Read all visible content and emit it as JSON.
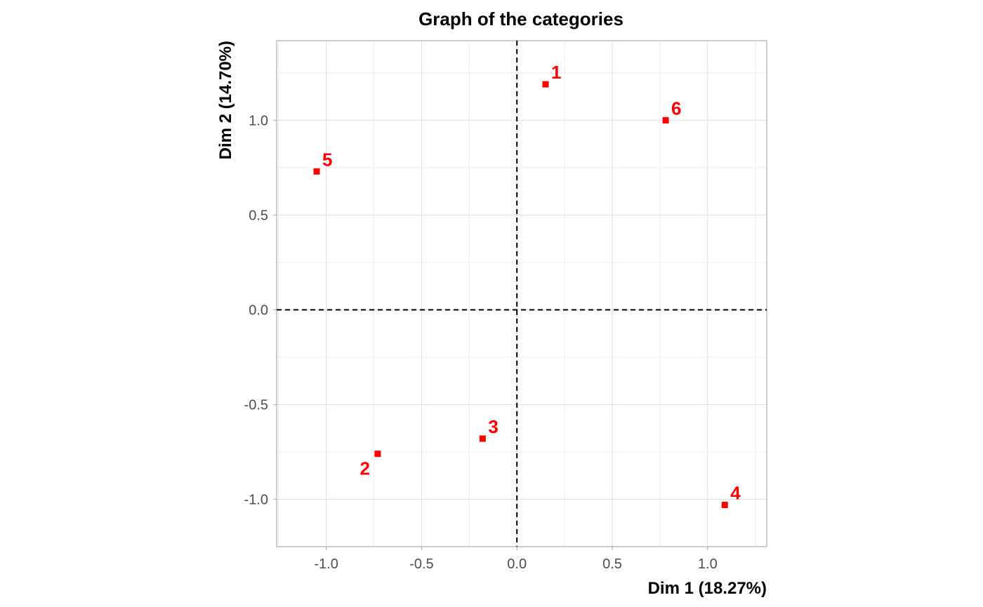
{
  "chart_data": {
    "type": "scatter",
    "title": "Graph of the categories",
    "xlabel": "Dim 1 (18.27%)",
    "ylabel": "Dim 2 (14.70%)",
    "xlim": [
      -1.26,
      1.31
    ],
    "ylim": [
      -1.25,
      1.42
    ],
    "xticks": [
      -1.0,
      -0.5,
      0.0,
      0.5,
      1.0
    ],
    "xtick_labels": [
      "-1.0",
      "-0.5",
      "0.0",
      "0.5",
      "1.0"
    ],
    "yticks": [
      -1.0,
      -0.5,
      0.0,
      0.5,
      1.0
    ],
    "ytick_labels": [
      "-1.0",
      "-0.5",
      "0.0",
      "0.5",
      "1.0"
    ],
    "grid": true,
    "reference_lines": {
      "x": 0,
      "y": 0,
      "style": "dashed"
    },
    "series": [
      {
        "color": "#ff0000",
        "marker": "square",
        "points": [
          {
            "label": "1",
            "x": 0.15,
            "y": 1.19
          },
          {
            "label": "2",
            "x": -0.73,
            "y": -0.76
          },
          {
            "label": "3",
            "x": -0.18,
            "y": -0.68
          },
          {
            "label": "4",
            "x": 1.09,
            "y": -1.03
          },
          {
            "label": "5",
            "x": -1.05,
            "y": 0.73
          },
          {
            "label": "6",
            "x": 0.78,
            "y": 1.0
          }
        ]
      }
    ]
  }
}
